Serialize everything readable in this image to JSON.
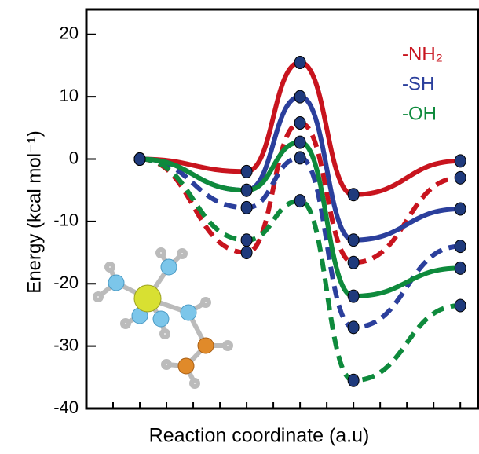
{
  "chart_data": {
    "type": "line",
    "y_label": "Energy (kcal mol⁻¹)",
    "x_label": "Reaction coordinate (a.u)",
    "x": [
      1,
      3,
      4,
      5,
      7
    ],
    "xlim": [
      0,
      7.35
    ],
    "xticks": [
      0.5,
      1,
      1.5,
      2,
      2.5,
      3,
      3.5,
      4,
      4.5,
      5,
      5.5,
      6,
      6.5,
      7
    ],
    "ylim": [
      -40,
      24
    ],
    "yticks": [
      -40,
      -30,
      -20,
      -10,
      0,
      10,
      20
    ],
    "series": [
      {
        "color": "#c8141e",
        "dashed": true,
        "values": [
          0,
          -15,
          5.8,
          -16.6,
          -3
        ]
      },
      {
        "color": "#2b3f9c",
        "dashed": true,
        "values": [
          0,
          -7.8,
          0.2,
          -27,
          -14
        ]
      },
      {
        "color": "#0e8a3c",
        "dashed": true,
        "values": [
          0,
          -13,
          -6.7,
          -35.5,
          -23.5
        ]
      },
      {
        "name": "-NH₂",
        "color": "#c8141e",
        "dashed": false,
        "values": [
          0,
          -2,
          15.5,
          -5.7,
          -0.3
        ]
      },
      {
        "name": "-SH",
        "color": "#2b3f9c",
        "dashed": false,
        "values": [
          0,
          -5,
          10,
          -13,
          -8
        ]
      },
      {
        "name": "-OH",
        "color": "#0e8a3c",
        "dashed": false,
        "values": [
          0,
          -5,
          2.7,
          -22,
          -17.5
        ]
      }
    ],
    "marker_color": "#1f3a7c"
  }
}
